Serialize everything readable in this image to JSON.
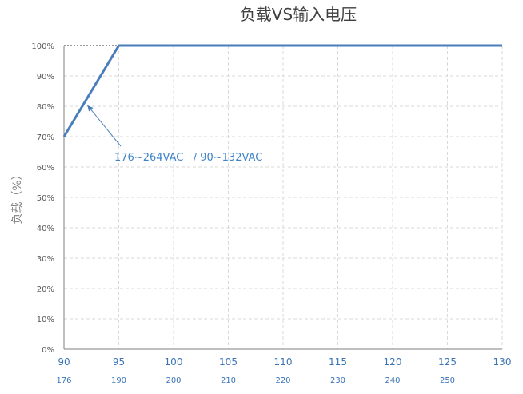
{
  "chart_data": {
    "type": "line",
    "title": "负载VS输入电压",
    "xlabel": "",
    "ylabel": "负载（%）",
    "x_range": [
      90,
      130
    ],
    "ylim": [
      0,
      100
    ],
    "x_ticks_primary": [
      90,
      95,
      100,
      105,
      110,
      115,
      120,
      125,
      130
    ],
    "x_ticks_secondary_labels": [
      "176",
      "190",
      "200",
      "210",
      "220",
      "230",
      "240",
      "250"
    ],
    "y_ticks": [
      "0%",
      "10%",
      "20%",
      "30%",
      "40%",
      "50%",
      "60%",
      "70%",
      "80%",
      "90%",
      "100%"
    ],
    "grid": true,
    "series": [
      {
        "x": [
          90,
          95,
          130
        ],
        "y": [
          70,
          100,
          100
        ]
      }
    ],
    "reference_lines": [
      {
        "x": [
          90,
          95
        ],
        "y": [
          100,
          100
        ]
      }
    ],
    "annotation": "176~264VAC   / 90~132VAC",
    "colors": {
      "line": "#4a7ebb",
      "grid": "#d9d9d9",
      "axis": "#7f7f7f",
      "annotation": "#3e83c9"
    }
  }
}
